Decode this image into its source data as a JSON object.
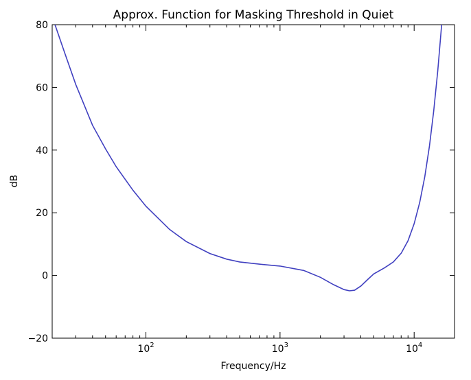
{
  "chart_data": {
    "type": "line",
    "title": "Approx. Function for Masking Threshold in Quiet",
    "xlabel": "Frequency/Hz",
    "ylabel": "dB",
    "xscale": "log",
    "xlim": [
      20,
      20000
    ],
    "ylim": [
      -20,
      80
    ],
    "grid": false,
    "yticks": [
      {
        "value": -20,
        "label": "−20"
      },
      {
        "value": 0,
        "label": "0"
      },
      {
        "value": 20,
        "label": "20"
      },
      {
        "value": 40,
        "label": "40"
      },
      {
        "value": 60,
        "label": "60"
      },
      {
        "value": 80,
        "label": "80"
      }
    ],
    "xticks": [
      {
        "value": 100,
        "base": "10",
        "exp": "2"
      },
      {
        "value": 1000,
        "base": "10",
        "exp": "3"
      },
      {
        "value": 10000,
        "base": "10",
        "exp": "4"
      }
    ],
    "line_color": "#4040c0",
    "series": [
      {
        "x": [
          21,
          25,
          30,
          40,
          50,
          60,
          80,
          100,
          150,
          200,
          300,
          400,
          500,
          700,
          1000,
          1500,
          2000,
          2500,
          3000,
          3300,
          3600,
          4000,
          4500,
          5000,
          6000,
          7000,
          8000,
          9000,
          10000,
          11000,
          12000,
          13000,
          14000,
          15000,
          16000,
          17000
        ],
        "y": [
          80,
          70.6,
          60.9,
          47.9,
          40.4,
          34.7,
          27.2,
          22.1,
          14.7,
          10.8,
          7.0,
          5.2,
          4.3,
          3.6,
          3.0,
          1.6,
          -0.6,
          -2.9,
          -4.5,
          -4.9,
          -4.7,
          -3.4,
          -1.3,
          0.5,
          2.4,
          4.3,
          7.1,
          11.1,
          16.5,
          23.3,
          31.5,
          41.3,
          52.5,
          65.3,
          79.6,
          95.5
        ]
      }
    ]
  }
}
